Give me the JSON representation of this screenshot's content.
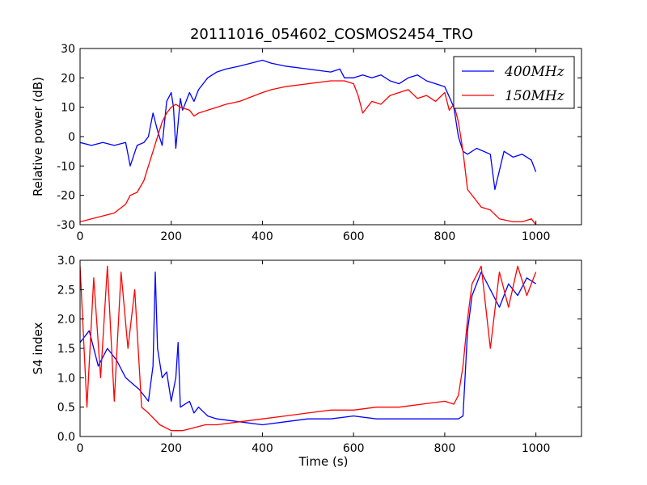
{
  "figure": {
    "title": "20111016_054602_COSMOS2454_TRO"
  },
  "chart_data": [
    {
      "type": "line",
      "panel": "top",
      "title": "20111016_054602_COSMOS2454_TRO",
      "xlabel": "",
      "ylabel": "Relative power (dB)",
      "xlim": [
        0,
        1100
      ],
      "ylim": [
        -30,
        30
      ],
      "xticks": [
        0,
        200,
        400,
        600,
        800,
        1000
      ],
      "yticks": [
        -30,
        -20,
        -10,
        0,
        10,
        20,
        30
      ],
      "grid": false,
      "legend": "top-right",
      "series": [
        {
          "name": "400MHz",
          "color": "#0000ff",
          "x": [
            0,
            25,
            50,
            75,
            100,
            110,
            125,
            140,
            150,
            160,
            170,
            180,
            190,
            200,
            205,
            210,
            220,
            225,
            240,
            250,
            260,
            280,
            300,
            320,
            350,
            400,
            420,
            450,
            500,
            550,
            570,
            580,
            600,
            620,
            640,
            660,
            680,
            700,
            720,
            740,
            760,
            780,
            800,
            820,
            830,
            840,
            850,
            870,
            900,
            910,
            930,
            950,
            970,
            990,
            1000
          ],
          "y": [
            -2,
            -3,
            -2,
            -3,
            -2,
            -10,
            -3,
            -2,
            0,
            8,
            2,
            -3,
            12,
            15,
            10,
            -4,
            13,
            9,
            15,
            12,
            16,
            20,
            22,
            23,
            24,
            26,
            25,
            24,
            23,
            22,
            23,
            20,
            20,
            21,
            20,
            21,
            19,
            18,
            20,
            21,
            19,
            18,
            17,
            10,
            0,
            -5,
            -6,
            -4,
            -6,
            -18,
            -5,
            -7,
            -6,
            -8,
            -12
          ]
        },
        {
          "name": "150MHz",
          "color": "#ff0000",
          "x": [
            0,
            25,
            50,
            75,
            100,
            110,
            125,
            140,
            150,
            160,
            170,
            180,
            190,
            200,
            210,
            220,
            240,
            250,
            260,
            280,
            300,
            320,
            350,
            400,
            420,
            450,
            500,
            550,
            570,
            580,
            600,
            610,
            620,
            640,
            660,
            680,
            700,
            720,
            740,
            760,
            780,
            800,
            810,
            820,
            830,
            840,
            850,
            870,
            880,
            900,
            920,
            950,
            970,
            990,
            1000
          ],
          "y": [
            -29,
            -28,
            -27,
            -26,
            -23,
            -20,
            -19,
            -15,
            -10,
            -5,
            0,
            5,
            8,
            10,
            11,
            10,
            9,
            7,
            8,
            9,
            10,
            11,
            12,
            15,
            16,
            17,
            18,
            19,
            19,
            19,
            18,
            14,
            8,
            12,
            11,
            14,
            15,
            16,
            13,
            14,
            12,
            15,
            9,
            11,
            5,
            -5,
            -18,
            -22,
            -24,
            -25,
            -28,
            -29,
            -29,
            -28,
            -30
          ]
        }
      ]
    },
    {
      "type": "line",
      "panel": "bottom",
      "title": "",
      "xlabel": "Time (s)",
      "ylabel": "S4 index",
      "xlim": [
        0,
        1100
      ],
      "ylim": [
        0.0,
        3.0
      ],
      "xticks": [
        0,
        200,
        400,
        600,
        800,
        1000
      ],
      "yticks": [
        0.0,
        0.5,
        1.0,
        1.5,
        2.0,
        2.5,
        3.0
      ],
      "grid": false,
      "series": [
        {
          "name": "400MHz",
          "color": "#0000ff",
          "x": [
            0,
            20,
            40,
            60,
            80,
            100,
            115,
            130,
            150,
            160,
            165,
            170,
            180,
            190,
            200,
            210,
            215,
            220,
            240,
            250,
            260,
            280,
            300,
            350,
            400,
            450,
            500,
            550,
            600,
            650,
            700,
            750,
            800,
            830,
            840,
            850,
            860,
            880,
            900,
            920,
            940,
            960,
            980,
            1000
          ],
          "y": [
            1.6,
            1.8,
            1.2,
            1.5,
            1.3,
            1.0,
            0.9,
            0.8,
            0.6,
            1.2,
            2.8,
            1.5,
            1.0,
            1.1,
            0.6,
            1.0,
            1.6,
            0.5,
            0.6,
            0.4,
            0.5,
            0.35,
            0.3,
            0.25,
            0.2,
            0.25,
            0.3,
            0.3,
            0.35,
            0.3,
            0.3,
            0.3,
            0.3,
            0.3,
            0.35,
            1.8,
            2.4,
            2.8,
            2.5,
            2.2,
            2.6,
            2.4,
            2.7,
            2.6
          ]
        },
        {
          "name": "150MHz",
          "color": "#ff0000",
          "x": [
            0,
            15,
            30,
            45,
            60,
            75,
            90,
            105,
            120,
            135,
            150,
            175,
            200,
            225,
            250,
            275,
            300,
            350,
            400,
            450,
            500,
            550,
            600,
            650,
            700,
            750,
            800,
            820,
            830,
            840,
            850,
            860,
            880,
            900,
            920,
            940,
            960,
            980,
            1000
          ],
          "y": [
            2.9,
            0.5,
            2.7,
            1.0,
            2.9,
            0.6,
            2.8,
            1.5,
            2.5,
            0.5,
            0.4,
            0.2,
            0.1,
            0.1,
            0.15,
            0.2,
            0.2,
            0.25,
            0.3,
            0.35,
            0.4,
            0.45,
            0.45,
            0.5,
            0.5,
            0.55,
            0.6,
            0.55,
            0.7,
            1.2,
            2.0,
            2.6,
            2.9,
            1.5,
            2.8,
            2.2,
            2.9,
            2.4,
            2.8
          ]
        }
      ]
    }
  ]
}
